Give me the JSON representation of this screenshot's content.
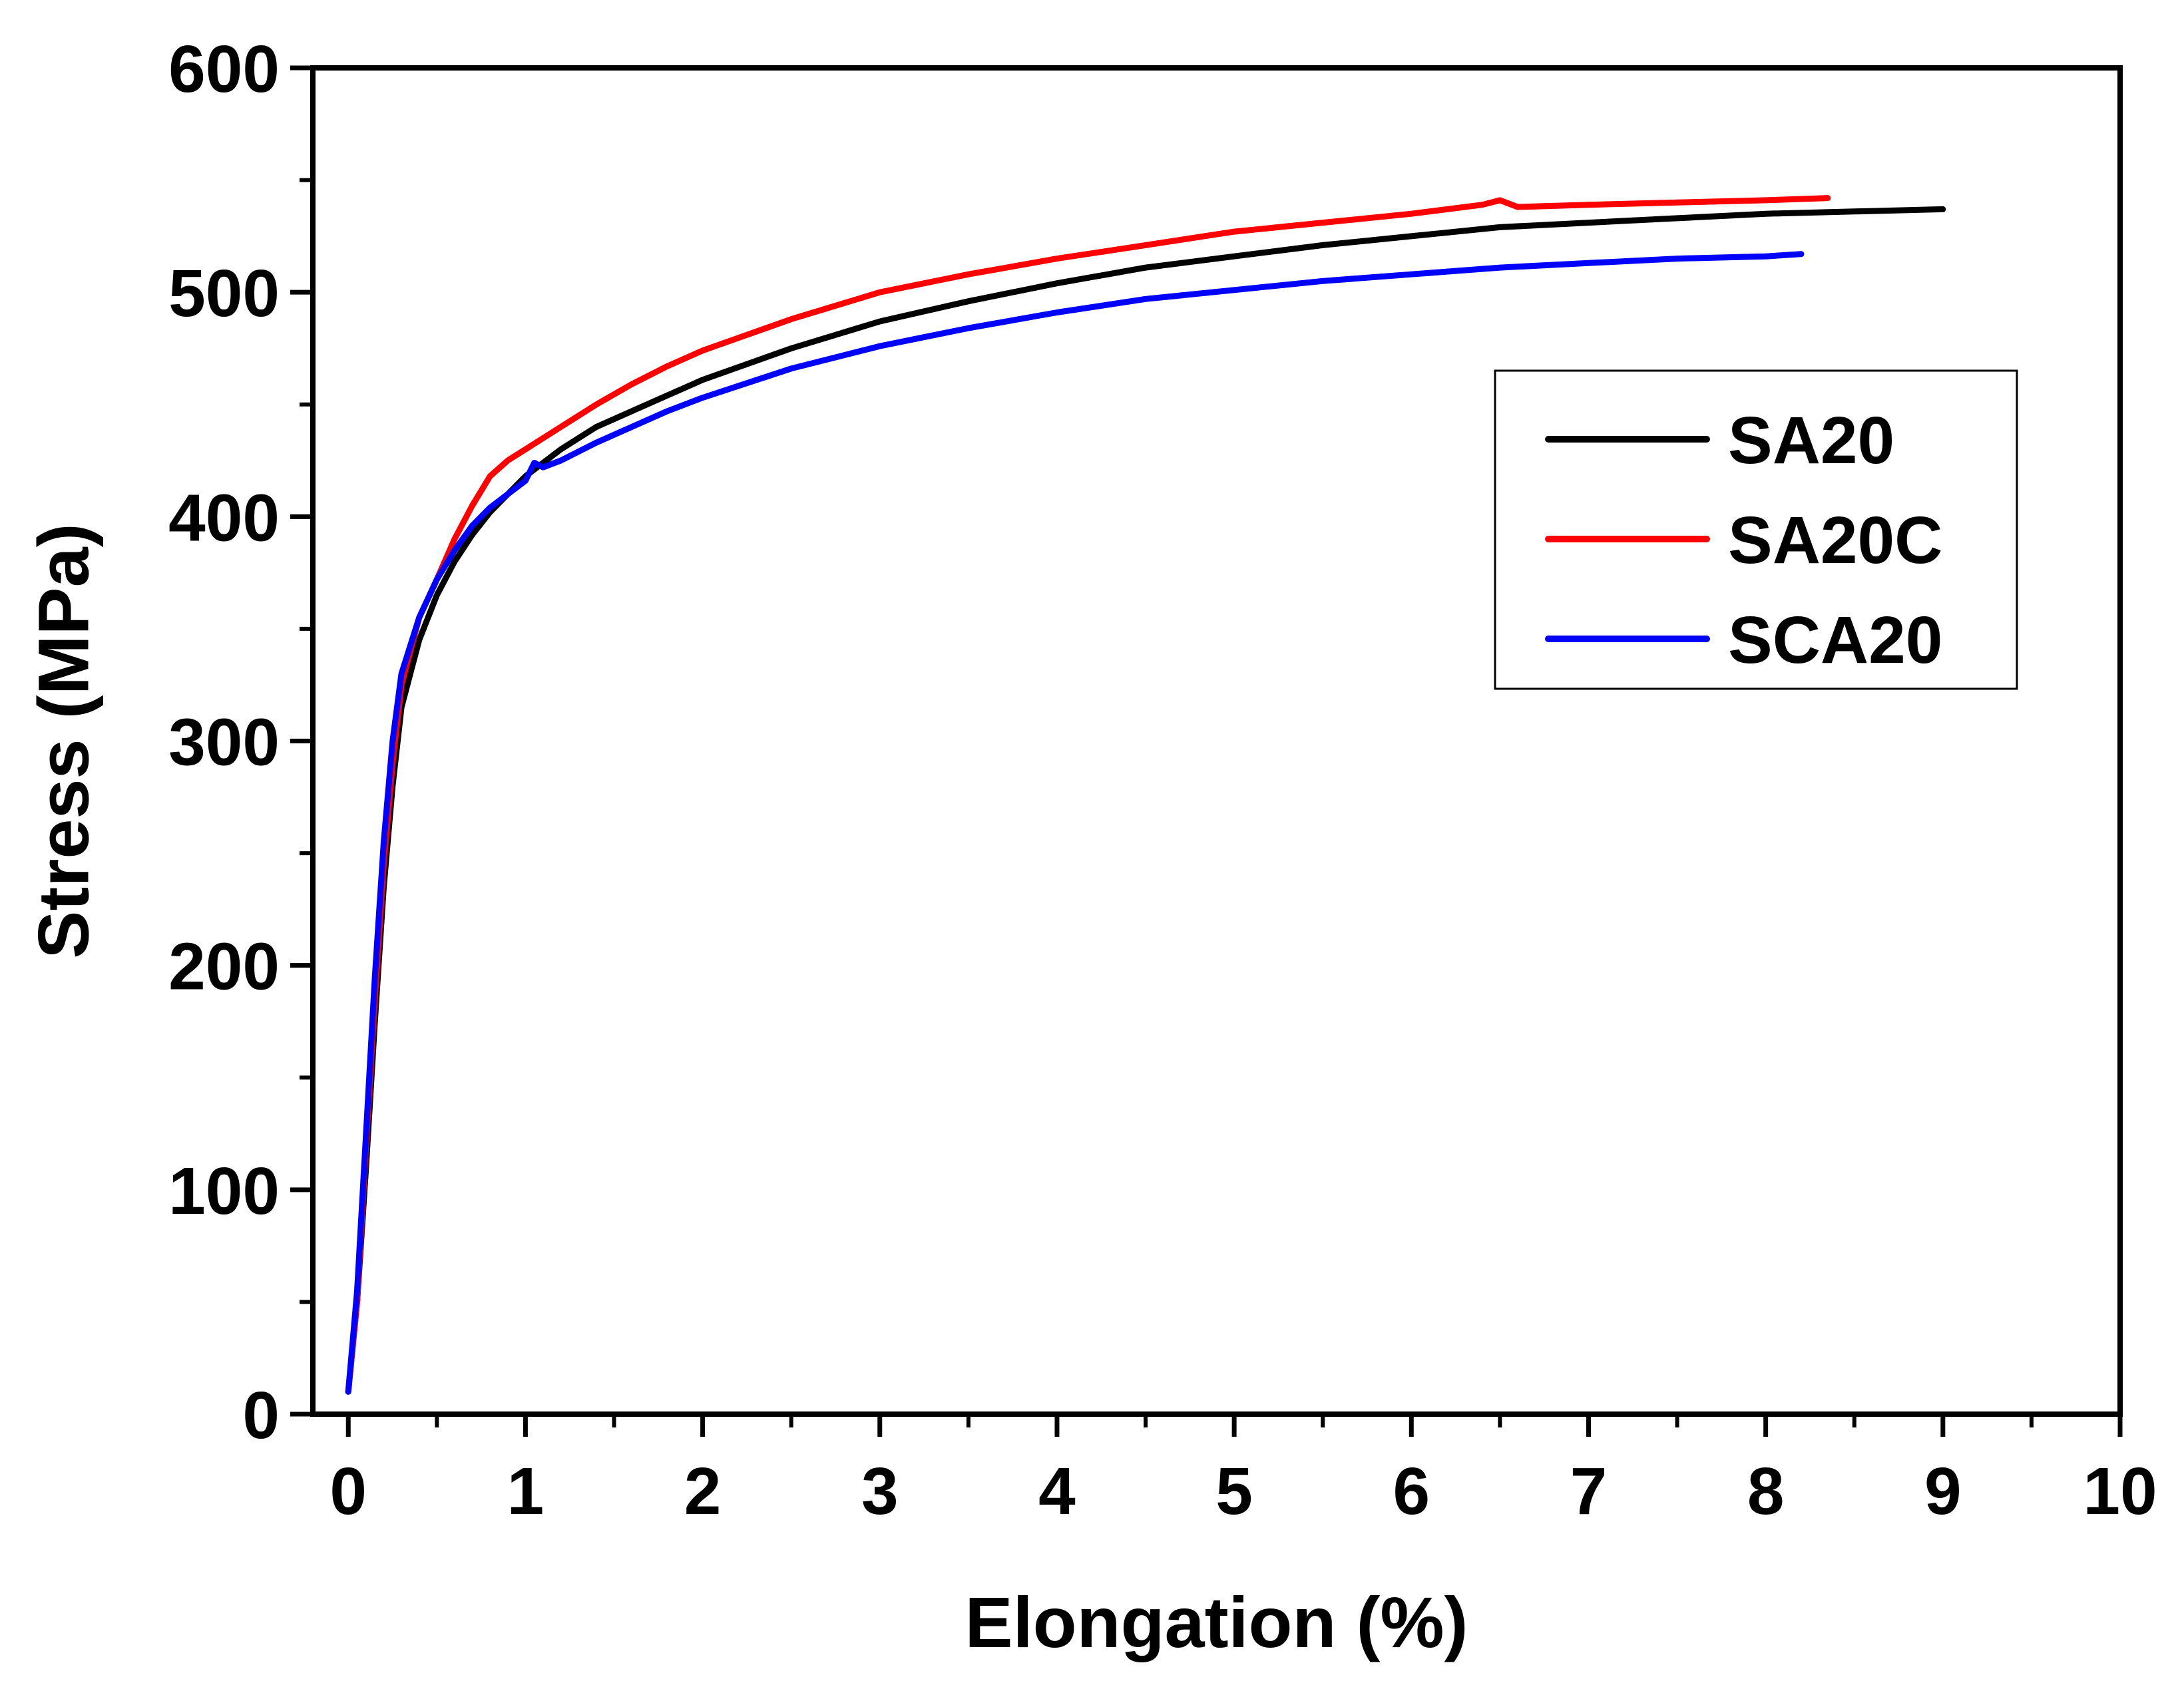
{
  "chart_data": {
    "type": "line",
    "title": "",
    "xlabel": "Elongation (%)",
    "ylabel": "Stress (MPa)",
    "xlim": [
      -0.2,
      10
    ],
    "ylim": [
      0,
      600
    ],
    "xticks": [
      0,
      1,
      2,
      3,
      4,
      5,
      6,
      7,
      8,
      9,
      10
    ],
    "yticks": [
      0,
      100,
      200,
      300,
      400,
      500,
      600
    ],
    "grid": false,
    "legend_position": "top-right",
    "series": [
      {
        "name": "SA20",
        "color": "#000000",
        "points": [
          [
            0,
            10
          ],
          [
            0.05,
            50
          ],
          [
            0.1,
            110
          ],
          [
            0.15,
            175
          ],
          [
            0.2,
            235
          ],
          [
            0.25,
            280
          ],
          [
            0.3,
            315
          ],
          [
            0.4,
            345
          ],
          [
            0.5,
            365
          ],
          [
            0.6,
            380
          ],
          [
            0.7,
            392
          ],
          [
            0.8,
            402
          ],
          [
            0.9,
            410
          ],
          [
            1.0,
            418
          ],
          [
            1.2,
            430
          ],
          [
            1.4,
            440
          ],
          [
            1.6,
            447
          ],
          [
            1.8,
            454
          ],
          [
            2.0,
            461
          ],
          [
            2.5,
            475
          ],
          [
            3.0,
            487
          ],
          [
            3.5,
            496
          ],
          [
            4.0,
            504
          ],
          [
            4.5,
            511
          ],
          [
            5.0,
            516
          ],
          [
            5.5,
            521
          ],
          [
            6.0,
            525
          ],
          [
            6.5,
            529
          ],
          [
            7.0,
            531
          ],
          [
            7.5,
            533
          ],
          [
            8.0,
            535
          ],
          [
            8.5,
            536
          ],
          [
            9.0,
            537
          ]
        ]
      },
      {
        "name": "SA20C",
        "color": "#ff0000",
        "points": [
          [
            0,
            10
          ],
          [
            0.05,
            50
          ],
          [
            0.1,
            120
          ],
          [
            0.15,
            185
          ],
          [
            0.2,
            245
          ],
          [
            0.25,
            290
          ],
          [
            0.3,
            325
          ],
          [
            0.4,
            355
          ],
          [
            0.5,
            372
          ],
          [
            0.6,
            390
          ],
          [
            0.7,
            405
          ],
          [
            0.8,
            418
          ],
          [
            0.9,
            425
          ],
          [
            1.0,
            430
          ],
          [
            1.2,
            440
          ],
          [
            1.4,
            450
          ],
          [
            1.6,
            459
          ],
          [
            1.8,
            467
          ],
          [
            2.0,
            474
          ],
          [
            2.5,
            488
          ],
          [
            3.0,
            500
          ],
          [
            3.5,
            508
          ],
          [
            4.0,
            515
          ],
          [
            4.5,
            521
          ],
          [
            5.0,
            527
          ],
          [
            5.5,
            531
          ],
          [
            6.0,
            535
          ],
          [
            6.4,
            539
          ],
          [
            6.5,
            541
          ],
          [
            6.6,
            538
          ],
          [
            7.0,
            539
          ],
          [
            7.5,
            540
          ],
          [
            8.0,
            541
          ],
          [
            8.35,
            542
          ]
        ]
      },
      {
        "name": "SCA20",
        "color": "#0000ff",
        "points": [
          [
            0,
            10
          ],
          [
            0.05,
            55
          ],
          [
            0.1,
            125
          ],
          [
            0.15,
            195
          ],
          [
            0.2,
            255
          ],
          [
            0.25,
            300
          ],
          [
            0.3,
            330
          ],
          [
            0.4,
            355
          ],
          [
            0.5,
            372
          ],
          [
            0.6,
            385
          ],
          [
            0.7,
            396
          ],
          [
            0.8,
            404
          ],
          [
            0.9,
            410
          ],
          [
            1.0,
            416
          ],
          [
            1.05,
            424
          ],
          [
            1.1,
            422
          ],
          [
            1.2,
            425
          ],
          [
            1.4,
            433
          ],
          [
            1.6,
            440
          ],
          [
            1.8,
            447
          ],
          [
            2.0,
            453
          ],
          [
            2.5,
            466
          ],
          [
            3.0,
            476
          ],
          [
            3.5,
            484
          ],
          [
            4.0,
            491
          ],
          [
            4.5,
            497
          ],
          [
            5.0,
            501
          ],
          [
            5.5,
            505
          ],
          [
            6.0,
            508
          ],
          [
            6.5,
            511
          ],
          [
            7.0,
            513
          ],
          [
            7.5,
            515
          ],
          [
            8.0,
            516
          ],
          [
            8.2,
            517
          ]
        ]
      }
    ]
  }
}
